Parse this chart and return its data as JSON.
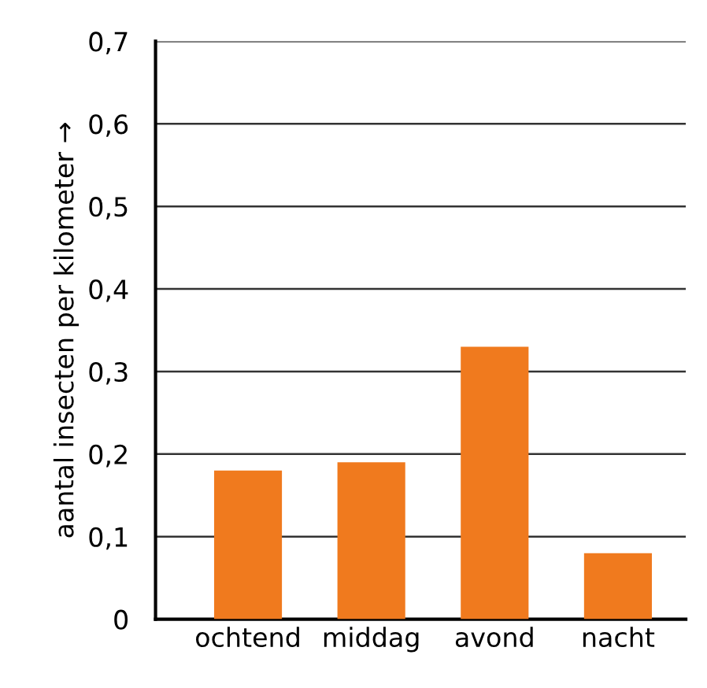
{
  "chart_data": {
    "type": "bar",
    "ylabel": "aantal insecten per kilometer →",
    "categories": [
      "ochtend",
      "middag",
      "avond",
      "nacht"
    ],
    "values": [
      0.18,
      0.19,
      0.33,
      0.08
    ],
    "color": "#f07a1e",
    "ylim": [
      0,
      0.7
    ],
    "yticks": [
      0,
      {
        "value": 0.1,
        "label": "0,1"
      },
      {
        "value": 0.2,
        "label": "0,2"
      },
      {
        "value": 0.3,
        "label": "0,3"
      },
      {
        "value": 0.4,
        "label": "0,4"
      },
      {
        "value": 0.5,
        "label": "0,5"
      },
      {
        "value": 0.6,
        "label": "0,6"
      },
      {
        "value": 0.7,
        "label": "0,7"
      }
    ],
    "grid": "y"
  }
}
